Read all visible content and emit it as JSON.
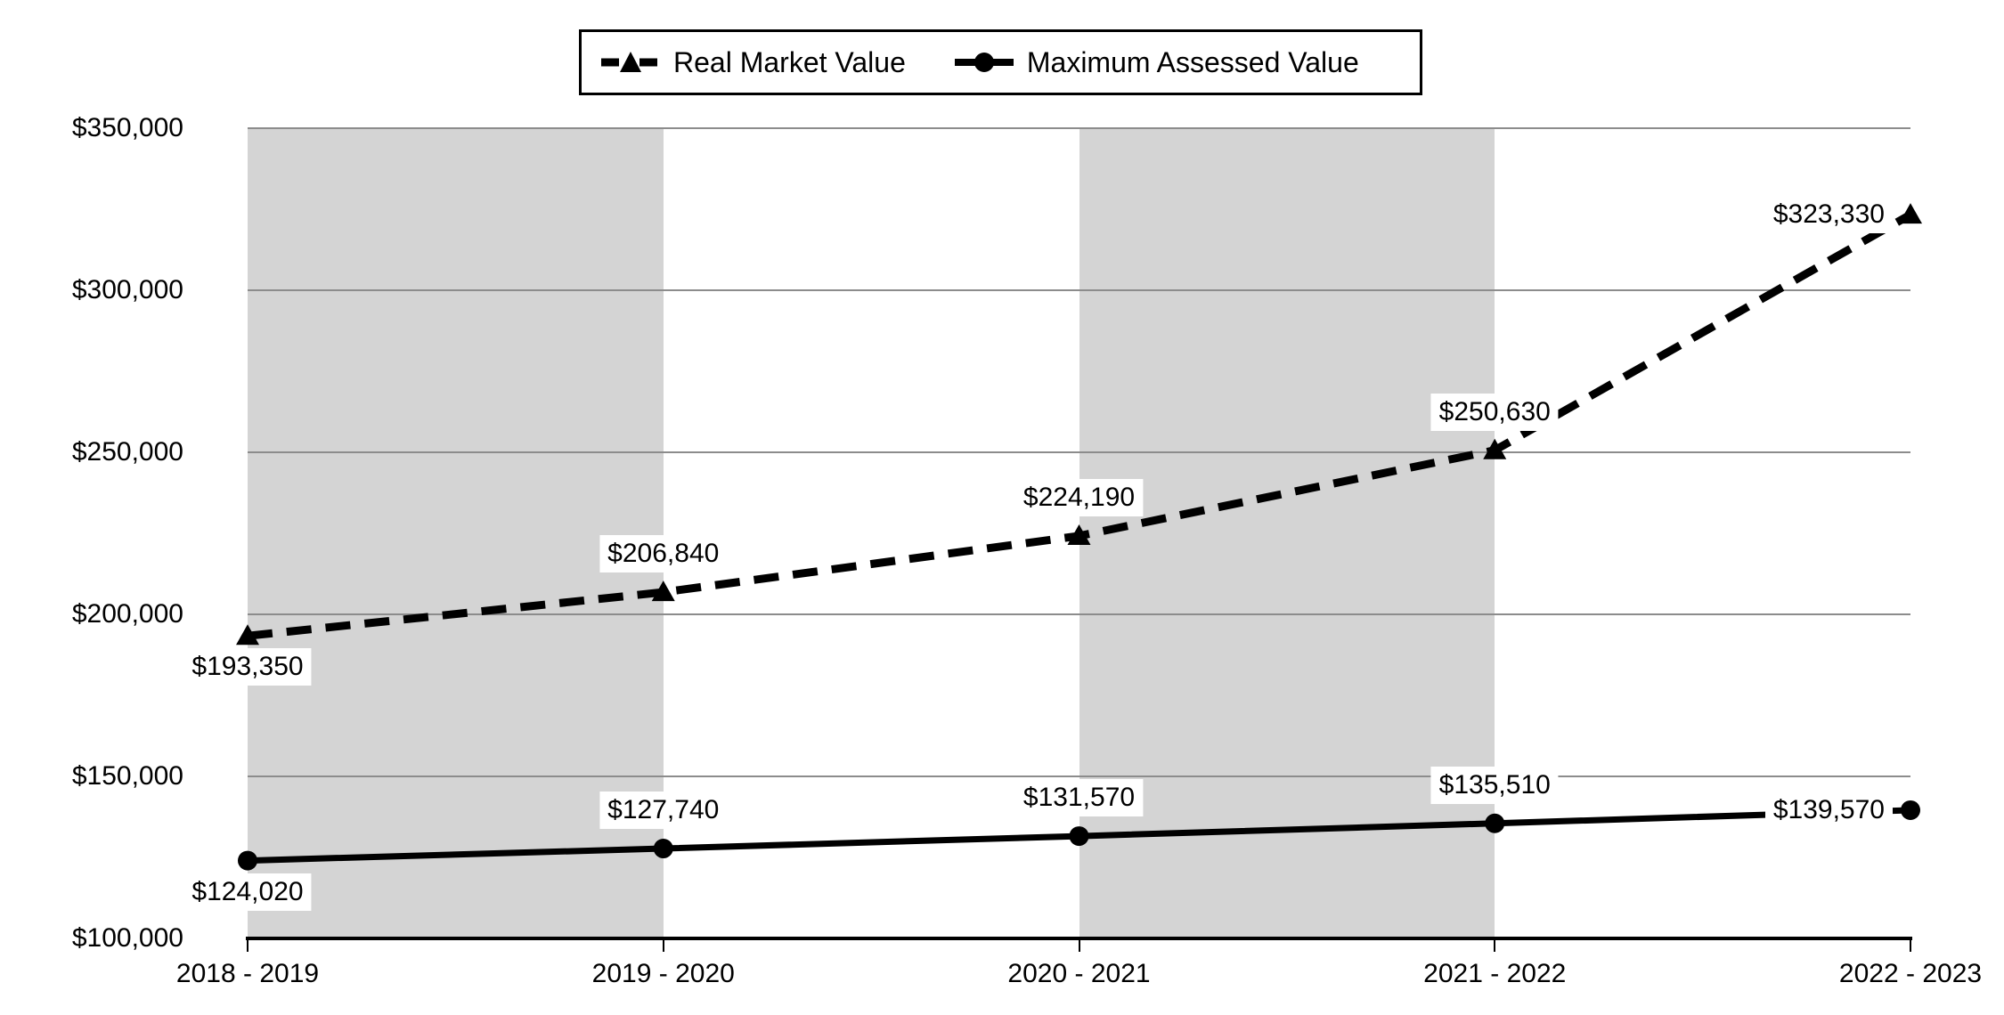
{
  "chart_data": {
    "type": "line",
    "title": "",
    "categories": [
      "2018 - 2019",
      "2019 - 2020",
      "2020 - 2021",
      "2021 - 2022",
      "2022 - 2023"
    ],
    "series": [
      {
        "name": "Real Market Value",
        "line_style": "dashed",
        "marker": "triangle",
        "values": [
          193350,
          206840,
          224190,
          250630,
          323330
        ],
        "data_labels": [
          "$193,350",
          "$206,840",
          "$224,190",
          "$250,630",
          "$323,330"
        ],
        "label_placement": [
          "below",
          "above",
          "above",
          "above",
          "left"
        ]
      },
      {
        "name": "Maximum Assessed Value",
        "line_style": "solid",
        "marker": "circle",
        "values": [
          124020,
          127740,
          131570,
          135510,
          139570
        ],
        "data_labels": [
          "$124,020",
          "$127,740",
          "$131,570",
          "$135,510",
          "$139,570"
        ],
        "label_placement": [
          "below",
          "above",
          "above",
          "above",
          "left"
        ]
      }
    ],
    "y_axis": {
      "min": 100000,
      "max": 350000,
      "step": 50000,
      "tick_labels": [
        "$350,000",
        "$300,000",
        "$250,000",
        "$200,000",
        "$150,000",
        "$100,000"
      ]
    },
    "shaded_columns": [
      [
        0,
        1
      ],
      [
        2,
        3
      ]
    ],
    "legend_position": "top",
    "grid": true,
    "colors": {
      "series": "#000000",
      "gridline": "#8c8c8c",
      "band": "#d4d4d4",
      "axis": "#000000",
      "text": "#000000",
      "label_background": "#ffffff",
      "background": "#ffffff"
    }
  }
}
